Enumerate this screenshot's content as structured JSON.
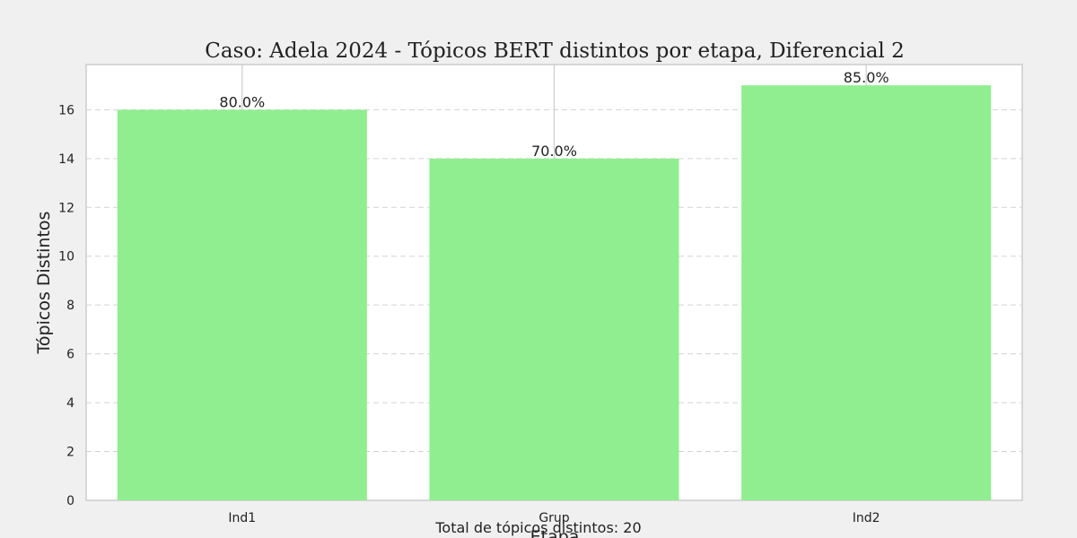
{
  "chart_data": {
    "type": "bar",
    "title": "Caso: Adela 2024 - Tópicos BERT distintos por etapa, Diferencial 2",
    "xlabel": "Etapa",
    "ylabel": "Tópicos Distintos",
    "categories": [
      "Ind1",
      "Grup",
      "Ind2"
    ],
    "values": [
      16,
      14,
      17
    ],
    "data_labels": [
      "80.0%",
      "70.0%",
      "85.0%"
    ],
    "y_ticks": [
      0,
      2,
      4,
      6,
      8,
      10,
      12,
      14,
      16
    ],
    "ylim": [
      0,
      17.85
    ],
    "grid": true,
    "bar_color": "#90ee90",
    "note": "Total de tópicos distintos: 20"
  }
}
